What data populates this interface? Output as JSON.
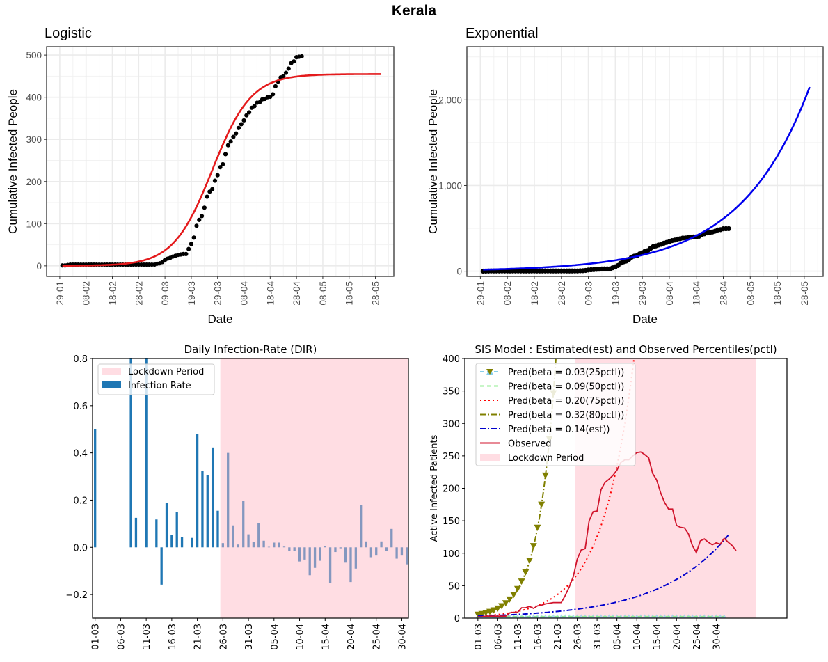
{
  "figure_title": "Kerala",
  "chart_data": [
    {
      "id": "logistic",
      "type": "scatter",
      "title": "Logistic",
      "xlabel": "Date",
      "ylabel": "Cumulative Infected People",
      "ylim": [
        -25,
        520
      ],
      "yticks": [
        0,
        100,
        200,
        300,
        400,
        500
      ],
      "ytick_labels": [
        "0",
        "100",
        "200",
        "300",
        "400",
        "500"
      ],
      "x_start": "29-01",
      "xlim_days": [
        -5,
        127
      ],
      "xtick_days": [
        0,
        10,
        20,
        30,
        40,
        50,
        60,
        70,
        80,
        90,
        100,
        110,
        120
      ],
      "xtick_labels": [
        "29-01",
        "08-02",
        "18-02",
        "28-02",
        "09-03",
        "19-03",
        "29-03",
        "08-04",
        "18-04",
        "28-04",
        "08-05",
        "18-05",
        "28-05"
      ],
      "grid": true,
      "series": [
        {
          "name": "Observed",
          "kind": "points",
          "color": "#000000",
          "x_days": [
            1,
            2,
            3,
            4,
            5,
            6,
            7,
            8,
            9,
            10,
            11,
            12,
            13,
            14,
            15,
            16,
            17,
            18,
            19,
            20,
            21,
            22,
            23,
            24,
            25,
            26,
            27,
            28,
            29,
            30,
            31,
            32,
            33,
            34,
            35,
            36,
            37,
            38,
            39,
            40,
            41,
            42,
            43,
            44,
            45,
            46,
            47,
            48,
            49,
            50,
            51,
            52,
            53,
            54,
            55,
            56,
            57,
            58,
            59,
            60,
            61,
            62,
            63,
            64,
            65,
            66,
            67,
            68,
            69,
            70,
            71,
            72,
            73,
            74,
            75,
            76,
            77,
            78,
            79,
            80,
            81,
            82,
            83,
            84,
            85,
            86,
            87,
            88,
            89,
            90,
            91,
            92
          ],
          "values": [
            1,
            1,
            2,
            3,
            3,
            3,
            3,
            3,
            3,
            3,
            3,
            3,
            3,
            3,
            3,
            3,
            3,
            3,
            3,
            3,
            3,
            3,
            3,
            3,
            3,
            3,
            3,
            3,
            3,
            3,
            3,
            3,
            3,
            3,
            3,
            3,
            5,
            6,
            9,
            14,
            17,
            19,
            22,
            24,
            26,
            27,
            28,
            28,
            40,
            52,
            67,
            95,
            109,
            118,
            138,
            164,
            176,
            182,
            202,
            215,
            234,
            241,
            265,
            286,
            295,
            306,
            314,
            327,
            336,
            345,
            357,
            364,
            375,
            379,
            387,
            388,
            395,
            396,
            400,
            401,
            407,
            426,
            437,
            447,
            450,
            458,
            468,
            481,
            485,
            495,
            496,
            497
          ]
        },
        {
          "name": "Logistic fit",
          "kind": "curve",
          "color": "#e41a1c",
          "model": "logistic",
          "K": 455,
          "r": 0.135,
          "t_mid_days": 58,
          "x_range_days": [
            1,
            122
          ]
        }
      ]
    },
    {
      "id": "exponential",
      "type": "scatter",
      "title": "Exponential",
      "xlabel": "Date",
      "ylabel": "Cumulative Infected People",
      "ylim": [
        -60,
        2620
      ],
      "yticks": [
        0,
        1000,
        2000
      ],
      "ytick_labels": [
        "0",
        "1,000",
        "2,000"
      ],
      "x_start": "29-01",
      "xlim_days": [
        -5,
        127
      ],
      "xtick_days": [
        0,
        10,
        20,
        30,
        40,
        50,
        60,
        70,
        80,
        90,
        100,
        110,
        120
      ],
      "xtick_labels": [
        "29-01",
        "08-02",
        "18-02",
        "28-02",
        "09-03",
        "19-03",
        "29-03",
        "08-04",
        "18-04",
        "28-04",
        "08-05",
        "18-05",
        "28-05"
      ],
      "grid": true,
      "series": [
        {
          "name": "Observed",
          "kind": "points",
          "color": "#000000",
          "ref": "logistic.0"
        },
        {
          "name": "Exponential fit",
          "kind": "curve",
          "color": "#0000ee",
          "model": "exponential",
          "a": 18,
          "b": 0.0392,
          "x_range_days": [
            1,
            122
          ]
        }
      ]
    },
    {
      "id": "dir",
      "type": "bar",
      "title": "Daily Infection-Rate (DIR)",
      "xlabel": "",
      "ylabel": "",
      "ylim": [
        -0.3,
        0.8
      ],
      "yticks": [
        -0.2,
        0.0,
        0.2,
        0.4,
        0.6,
        0.8
      ],
      "ytick_labels": [
        "−0.2",
        "0.0",
        "0.2",
        "0.4",
        "0.6",
        "0.8"
      ],
      "x_start": "01-03",
      "xlim_days": [
        -0.5,
        61.3
      ],
      "xtick_days": [
        0,
        5,
        10,
        15,
        20,
        25,
        30,
        35,
        40,
        45,
        50,
        55,
        60
      ],
      "xtick_labels": [
        "01-03",
        "06-03",
        "11-03",
        "16-03",
        "21-03",
        "26-03",
        "31-03",
        "05-04",
        "10-04",
        "15-04",
        "20-04",
        "25-04",
        "30-04"
      ],
      "lockdown_start_day": 24,
      "legend": {
        "position": "upper-left",
        "entries": [
          "Lockdown Period",
          "Infection Rate"
        ]
      },
      "colors": {
        "bar": "#1f77b4",
        "bar_in_lockdown": "#8497bf",
        "lockdown": "#ffdde3"
      },
      "values": [
        0.5,
        0,
        0,
        0,
        0,
        0,
        0,
        0.8,
        0.125,
        0,
        0.8,
        0,
        0.118,
        -0.158,
        0.188,
        0.053,
        0.15,
        0.043,
        0,
        0.04,
        0.48,
        0.325,
        0.305,
        0.423,
        0.155,
        0.018,
        0.4,
        0.093,
        0.012,
        0.198,
        0.055,
        0.023,
        0.102,
        0.028,
        0.002,
        0.02,
        0.02,
        0.003,
        -0.015,
        -0.015,
        -0.06,
        -0.052,
        -0.118,
        -0.087,
        -0.057,
        0.004,
        -0.152,
        -0.02,
        -0.004,
        -0.065,
        -0.147,
        -0.09,
        0.178,
        0.025,
        -0.042,
        -0.035,
        0.025,
        -0.015,
        0.078,
        -0.048,
        -0.035,
        -0.072
      ]
    },
    {
      "id": "sis",
      "type": "line",
      "title": "SIS Model : Estimated(est) and Observed Percentiles(pctl)",
      "xlabel": "",
      "ylabel": "Active Infected Patients",
      "ylim": [
        0,
        400
      ],
      "yticks": [
        0,
        50,
        100,
        150,
        200,
        250,
        300,
        350,
        400
      ],
      "ytick_labels": [
        "0",
        "50",
        "100",
        "150",
        "200",
        "250",
        "300",
        "350",
        "400"
      ],
      "x_start": "01-03",
      "xlim_days": [
        -3.3,
        77.8
      ],
      "xtick_days": [
        0,
        5,
        10,
        15,
        20,
        25,
        30,
        35,
        40,
        45,
        50,
        55,
        60
      ],
      "xtick_labels": [
        "01-03",
        "06-03",
        "11-03",
        "16-03",
        "21-03",
        "26-03",
        "31-03",
        "05-04",
        "10-04",
        "15-04",
        "20-04",
        "25-04",
        "30-04"
      ],
      "lockdown_days": [
        24.5,
        70
      ],
      "lockdown_color": "#ffdde3",
      "legend": {
        "position": "upper-left",
        "entries": [
          "Pred(beta = 0.03(25pctl))",
          "Pred(beta = 0.09(50pctl))",
          "Pred(beta = 0.20(75pctl))",
          "Pred(beta = 0.32(80pctl))",
          "Pred(beta = 0.14(est))",
          "Observed",
          "Lockdown Period"
        ]
      },
      "series": [
        {
          "name": "Pred(beta = 0.03(25pctl))",
          "color": "#87ceeb",
          "style": "dashed",
          "marker": "triangle-up",
          "y0": 1.8,
          "rate": 0.0,
          "days": [
            0,
            62
          ]
        },
        {
          "name": "Pred(beta = 0.09(50pctl))",
          "color": "#90ee90",
          "style": "dashed",
          "marker": "none",
          "y0": 2.2,
          "rate": 0.0,
          "days": [
            0,
            62
          ]
        },
        {
          "name": "Pred(beta = 0.20(75pctl))",
          "color": "#ff0000",
          "style": "dotted",
          "marker": "none",
          "y0": 3,
          "rate": 0.1245,
          "days": [
            0,
            41
          ]
        },
        {
          "name": "Pred(beta = 0.32(80pctl))",
          "color": "#808000",
          "style": "dashdot",
          "marker": "triangle-down",
          "y0": 4.5,
          "rate": 0.2285,
          "days": [
            0,
            21.1
          ]
        },
        {
          "name": "Pred(beta = 0.14(est))",
          "color": "#0000cd",
          "style": "dashdot",
          "marker": "none",
          "y0": 3.2,
          "rate": 0.0585,
          "days": [
            0,
            63
          ]
        },
        {
          "name": "Observed",
          "color": "#d0142c",
          "style": "solid",
          "marker": "none",
          "values": [
            2,
            2,
            3,
            3,
            3,
            3,
            3,
            3,
            8,
            9,
            9,
            16,
            16,
            18,
            15,
            19,
            20,
            22,
            23,
            24,
            24,
            24,
            35,
            48,
            64,
            91,
            105,
            107,
            150,
            164,
            165,
            198,
            209,
            214,
            220,
            228,
            240,
            244,
            244,
            250,
            255,
            256,
            252,
            247,
            223,
            213,
            193,
            178,
            168,
            168,
            143,
            140,
            139,
            130,
            112,
            101,
            119,
            122,
            117,
            113,
            116,
            114,
            123,
            117,
            112,
            104
          ]
        }
      ]
    }
  ]
}
